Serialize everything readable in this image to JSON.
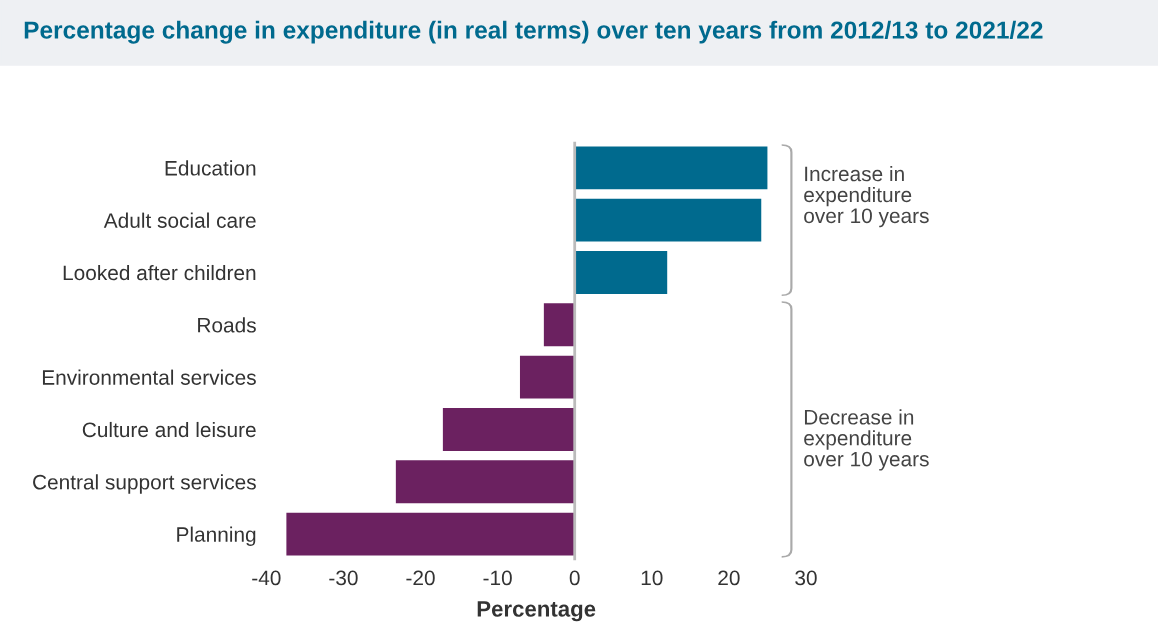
{
  "chart_data": {
    "type": "bar",
    "orientation": "horizontal",
    "title": "Percentage change in expenditure (in real terms) over ten years from 2012/13 to 2021/22",
    "xlabel": "Percentage",
    "categories": [
      "Education",
      "Adult social care",
      "Looked after children",
      "Roads",
      "Environmental services",
      "Culture and leisure",
      "Central support services",
      "Planning"
    ],
    "values": [
      25,
      24.2,
      12,
      -4,
      -7.1,
      -17.1,
      -23.2,
      -37.4
    ],
    "colors": [
      "#006a8e",
      "#006a8e",
      "#006a8e",
      "#6b2160",
      "#6b2160",
      "#6b2160",
      "#6b2160",
      "#6b2160"
    ],
    "xlim": [
      -40,
      30
    ],
    "xticks": [
      -40,
      -30,
      -20,
      -10,
      0,
      10,
      20,
      30
    ],
    "ref_lines": [
      {
        "axis": "x",
        "value": 0,
        "color": "#bbbbbb"
      }
    ],
    "annotations": [
      "Increase in\nexpenditure\nover 10 years",
      "Decrease in\nexpenditure\nover 10 years"
    ],
    "grid": false,
    "legend": false
  }
}
